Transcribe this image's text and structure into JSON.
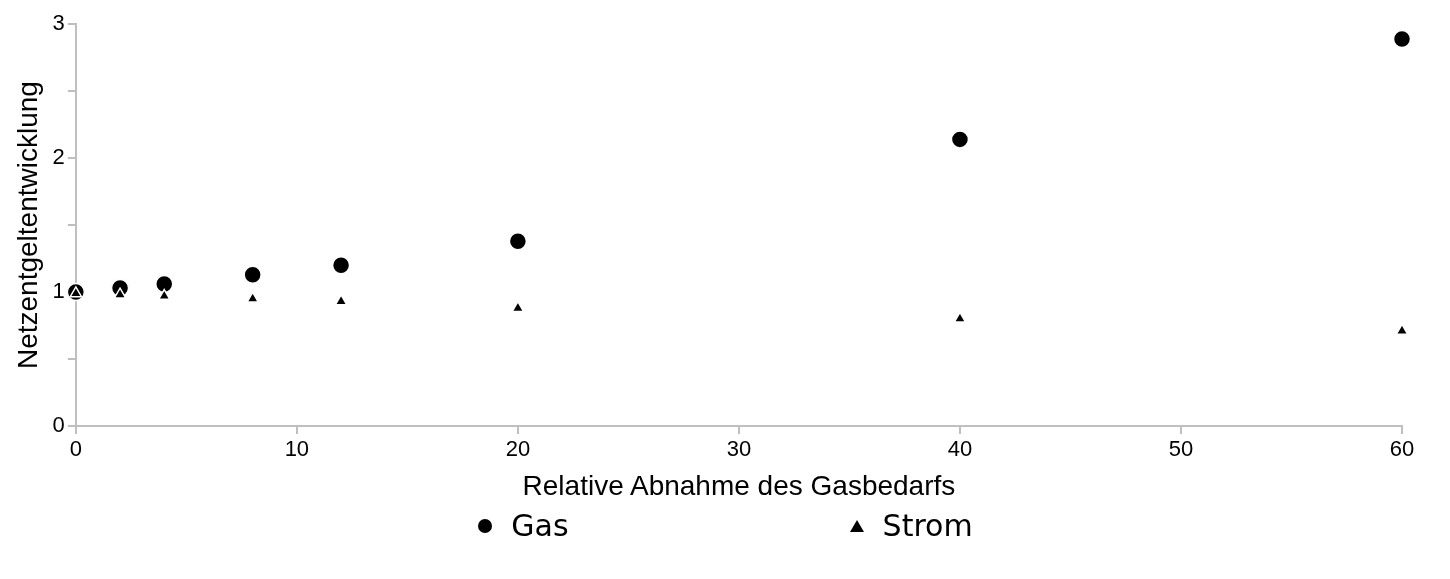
{
  "chart_data": {
    "type": "scatter",
    "xlabel": "Relative Abnahme des Gasbedarfs",
    "ylabel": "Netzentgeltentwicklung",
    "x": [
      0,
      2,
      4,
      8,
      12,
      20,
      40,
      60
    ],
    "series": [
      {
        "name": "Gas",
        "color": "#000000",
        "marker": "circle",
        "values": [
          1.0,
          1.03,
          1.06,
          1.13,
          1.2,
          1.38,
          2.14,
          2.89
        ]
      },
      {
        "name": "Strom",
        "color": "#000000",
        "marker": "triangle",
        "values": [
          0.99,
          0.98,
          0.97,
          0.95,
          0.93,
          0.88,
          0.8,
          0.71
        ]
      }
    ],
    "xlim": [
      0,
      60
    ],
    "xticks": [
      0,
      10,
      20,
      30,
      40,
      50,
      60
    ],
    "ylim": [
      0,
      3
    ],
    "yticks": [
      0,
      {
        "value": 0.5,
        "label": null
      },
      1,
      {
        "value": 1.5,
        "label": null
      },
      2,
      {
        "value": 2.5,
        "label": null
      },
      3
    ],
    "grid": false,
    "legend": "bottom"
  }
}
